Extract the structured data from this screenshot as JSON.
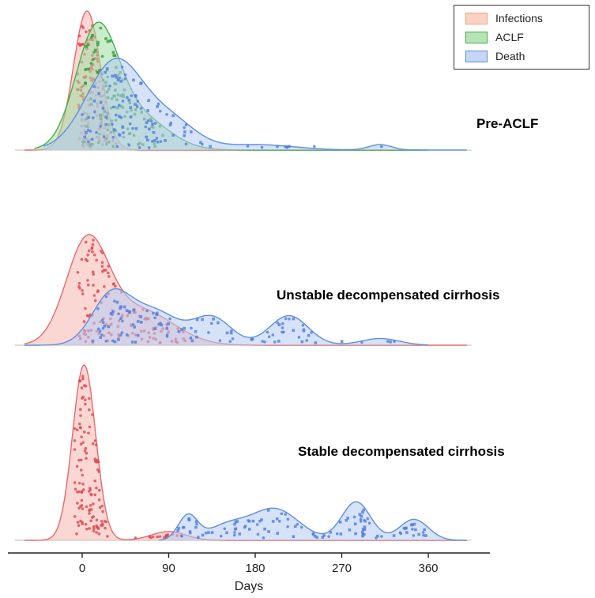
{
  "chart_data": {
    "type": "ridgeline",
    "xlabel": "Days",
    "xlim": [
      -70,
      410
    ],
    "x_ticks": [
      0,
      90,
      180,
      270,
      360
    ],
    "legend_position": "top-right",
    "grid": false,
    "categories": [
      "Infections",
      "ACLF",
      "Death"
    ],
    "colors": {
      "Infections": {
        "fill": "#f7b6b0",
        "stroke": "#e8696a",
        "dot": "#e0464d"
      },
      "ACLF": {
        "fill": "#9fdca0",
        "stroke": "#43b04a",
        "dot": "#2f9b3a"
      },
      "Death": {
        "fill": "#b4cbf2",
        "stroke": "#5b8fe0",
        "dot": "#4f7ddc"
      }
    },
    "panels": [
      {
        "label": "Pre-ACLF",
        "series": [
          {
            "name": "Infections",
            "peaks": [
              [
                5,
                1.0,
                14
              ]
            ],
            "range": [
              -60,
              350
            ],
            "dots": [
              -5,
              40
            ]
          },
          {
            "name": "ACLF",
            "peaks": [
              [
                15,
                0.92,
                22
              ],
              [
                60,
                0.25,
                30
              ]
            ],
            "range": [
              -50,
              360
            ],
            "dots": [
              0,
              100
            ]
          },
          {
            "name": "Death",
            "peaks": [
              [
                35,
                0.66,
                30
              ],
              [
                95,
                0.18,
                25
              ],
              [
                180,
                0.04,
                40
              ],
              [
                310,
                0.04,
                12
              ]
            ],
            "range": [
              -40,
              400
            ],
            "dots": [
              0,
              320
            ]
          }
        ]
      },
      {
        "label": "Unstable decompensated cirrhosis",
        "series": [
          {
            "name": "Infections",
            "peaks": [
              [
                5,
                1.0,
                22
              ],
              [
                60,
                0.35,
                35
              ]
            ],
            "range": [
              -60,
              400
            ],
            "dots": [
              -5,
              110
            ]
          },
          {
            "name": "Death",
            "peaks": [
              [
                30,
                0.51,
                20
              ],
              [
                75,
                0.35,
                25
              ],
              [
                135,
                0.29,
                20
              ],
              [
                215,
                0.31,
                20
              ],
              [
                310,
                0.07,
                20
              ]
            ],
            "range": [
              -60,
              360
            ],
            "dots": [
              10,
              330
            ]
          }
        ]
      },
      {
        "label": "Stable decompensated cirrhosis",
        "series": [
          {
            "name": "Infections",
            "peaks": [
              [
                2,
                1.0,
                12
              ],
              [
                90,
                0.05,
                18
              ]
            ],
            "range": [
              -60,
              400
            ],
            "dots": [
              -8,
              110
            ]
          },
          {
            "name": "Death",
            "peaks": [
              [
                110,
                0.14,
                10
              ],
              [
                150,
                0.08,
                20
              ],
              [
                200,
                0.18,
                25
              ],
              [
                285,
                0.22,
                15
              ],
              [
                345,
                0.12,
                15
              ]
            ],
            "range": [
              80,
              400
            ],
            "dots": [
              95,
              360
            ]
          }
        ]
      }
    ]
  }
}
